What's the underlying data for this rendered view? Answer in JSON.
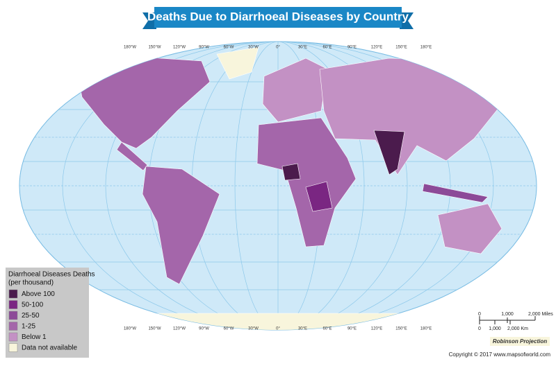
{
  "title": "Deaths Due to Diarrhoeal Diseases by Country",
  "longitude_labels": [
    "180°W",
    "150°W",
    "120°W",
    "90°W",
    "60°W",
    "30°W",
    "0°",
    "30°E",
    "60°E",
    "90°E",
    "120°E",
    "150°E",
    "180°E"
  ],
  "legend": {
    "title": [
      "Diarrhoeal Diseases Deaths",
      "(per thousand)"
    ],
    "items": [
      {
        "label": "Above 100",
        "color": "#4b1b4d"
      },
      {
        "label": "50-100",
        "color": "#7a2682"
      },
      {
        "label": "25-50",
        "color": "#8c4a98"
      },
      {
        "label": "1-25",
        "color": "#a466aa"
      },
      {
        "label": "Below 1",
        "color": "#c391c4"
      },
      {
        "label": "Data not available",
        "color": "#f8f5dc"
      }
    ]
  },
  "scale": {
    "miles": [
      "0",
      "1,000",
      "2,000 Miles"
    ],
    "km": [
      "0",
      "1,000",
      "2,000 Km"
    ]
  },
  "projection": "Robinson Projection",
  "copyright": "Copyright © 2017 www.mapsofworld.com"
}
